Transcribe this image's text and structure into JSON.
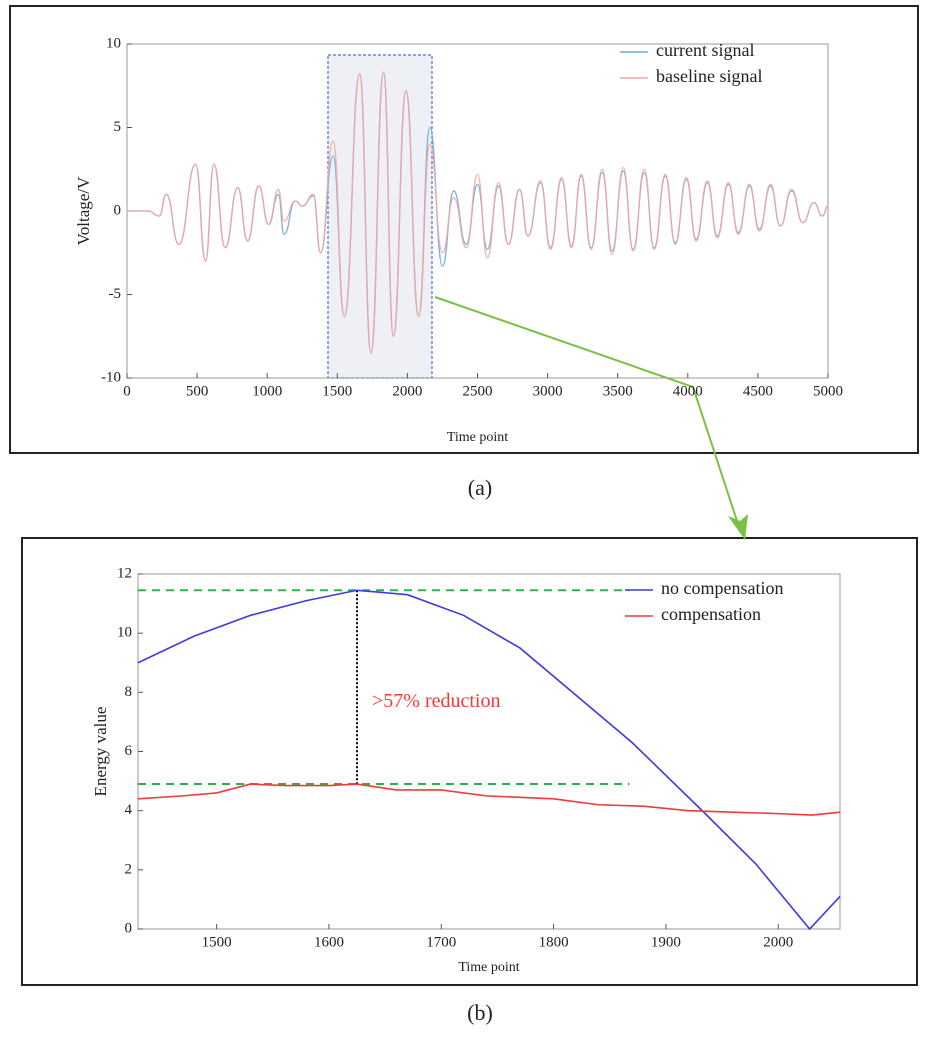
{
  "chart_data": [
    {
      "type": "line",
      "caption": "(a)",
      "xlabel": "Time point",
      "ylabel": "Voltage/V",
      "x": [
        0,
        150,
        230,
        280,
        370,
        490,
        560,
        620,
        700,
        790,
        860,
        940,
        1010,
        1080,
        1120,
        1200,
        1250,
        1330,
        1380,
        1470,
        1550,
        1660,
        1740,
        1830,
        1900,
        1990,
        2080,
        2160,
        2250,
        2330,
        2420,
        2500,
        2570,
        2650,
        2720,
        2800,
        2860,
        2950,
        3020,
        3100,
        3170,
        3240,
        3310,
        3390,
        3460,
        3540,
        3610,
        3690,
        3760,
        3840,
        3910,
        3990,
        4060,
        4140,
        4210,
        4290,
        4360,
        4440,
        4510,
        4590,
        4660,
        4740,
        4820,
        4900,
        4960,
        5000
      ],
      "series": [
        {
          "name": "current signal",
          "color": "#6fa8dc",
          "values": [
            0,
            0,
            -0.3,
            1.0,
            -2.0,
            2.8,
            -3.0,
            2.8,
            -2.2,
            1.4,
            -1.8,
            1.5,
            -0.8,
            1.0,
            -1.4,
            0.6,
            0.3,
            0.9,
            -2.5,
            3.3,
            -6.3,
            8.2,
            -8.5,
            8.3,
            -7.5,
            7.2,
            -6.3,
            5.0,
            -3.3,
            1.2,
            -2.0,
            1.6,
            -2.3,
            1.5,
            -2.0,
            1.3,
            -1.5,
            1.7,
            -2.2,
            1.9,
            -2.1,
            2.1,
            -2.2,
            2.3,
            -2.4,
            2.4,
            -2.3,
            2.3,
            -2.2,
            2.1,
            -1.9,
            1.9,
            -1.7,
            1.7,
            -1.5,
            1.6,
            -1.3,
            1.5,
            -1.1,
            1.5,
            -0.9,
            1.2,
            -0.7,
            0.5,
            -0.3,
            0.3
          ]
        },
        {
          "name": "baseline signal",
          "color": "#f4a6a6",
          "values": [
            0,
            0,
            -0.3,
            1.0,
            -2.0,
            2.8,
            -3.0,
            2.8,
            -2.2,
            1.4,
            -1.8,
            1.5,
            -0.8,
            1.3,
            -0.6,
            0.6,
            0.3,
            1.0,
            -2.5,
            4.2,
            -6.3,
            8.2,
            -8.5,
            8.3,
            -7.5,
            7.2,
            -6.3,
            4.0,
            -2.5,
            0.8,
            -2.2,
            2.2,
            -2.8,
            1.7,
            -2.0,
            1.3,
            -1.5,
            1.8,
            -2.3,
            2.0,
            -2.2,
            2.2,
            -2.3,
            2.5,
            -2.6,
            2.6,
            -2.4,
            2.5,
            -2.3,
            2.2,
            -2.0,
            2.0,
            -1.8,
            1.8,
            -1.6,
            1.7,
            -1.4,
            1.6,
            -1.2,
            1.6,
            -0.9,
            1.3,
            -0.7,
            0.5,
            -0.3,
            0.3
          ]
        }
      ],
      "xlim": [
        0,
        5000
      ],
      "xticks": [
        0,
        500,
        1000,
        1500,
        2000,
        2500,
        3000,
        3500,
        4000,
        4500,
        5000
      ],
      "ylim": [
        -10,
        10
      ],
      "yticks": [
        -10,
        -5,
        0,
        5,
        10
      ],
      "legend": "upper right"
    },
    {
      "type": "line",
      "caption": "(b)",
      "xlabel": "Time point",
      "ylabel": "Energy value",
      "annotation": ">57% reduction",
      "hlines": [
        11.45,
        4.9
      ],
      "vline": 1625,
      "series": [
        {
          "name": "no compensation",
          "color": "#3b3be0",
          "x": [
            1430,
            1480,
            1530,
            1580,
            1625,
            1670,
            1720,
            1770,
            1820,
            1870,
            1935,
            1980,
            2028,
            2055
          ],
          "values": [
            9.0,
            9.9,
            10.6,
            11.1,
            11.45,
            11.3,
            10.6,
            9.5,
            7.9,
            6.3,
            3.9,
            2.2,
            0,
            1.1
          ]
        },
        {
          "name": "compensation",
          "color": "#f03a3a",
          "x": [
            1430,
            1470,
            1500,
            1530,
            1560,
            1600,
            1625,
            1660,
            1700,
            1740,
            1800,
            1840,
            1880,
            1920,
            1960,
            2000,
            2030,
            2055
          ],
          "values": [
            4.4,
            4.5,
            4.6,
            4.9,
            4.85,
            4.85,
            4.9,
            4.7,
            4.7,
            4.5,
            4.4,
            4.2,
            4.15,
            4.0,
            3.95,
            3.9,
            3.85,
            3.95
          ]
        }
      ],
      "xlim": [
        1430,
        2055
      ],
      "xticks": [
        1500,
        1600,
        1700,
        1800,
        1900,
        2000
      ],
      "ylim": [
        0,
        12
      ],
      "yticks": [
        0,
        2,
        4,
        6,
        8,
        10,
        12
      ],
      "legend": "upper right"
    }
  ]
}
